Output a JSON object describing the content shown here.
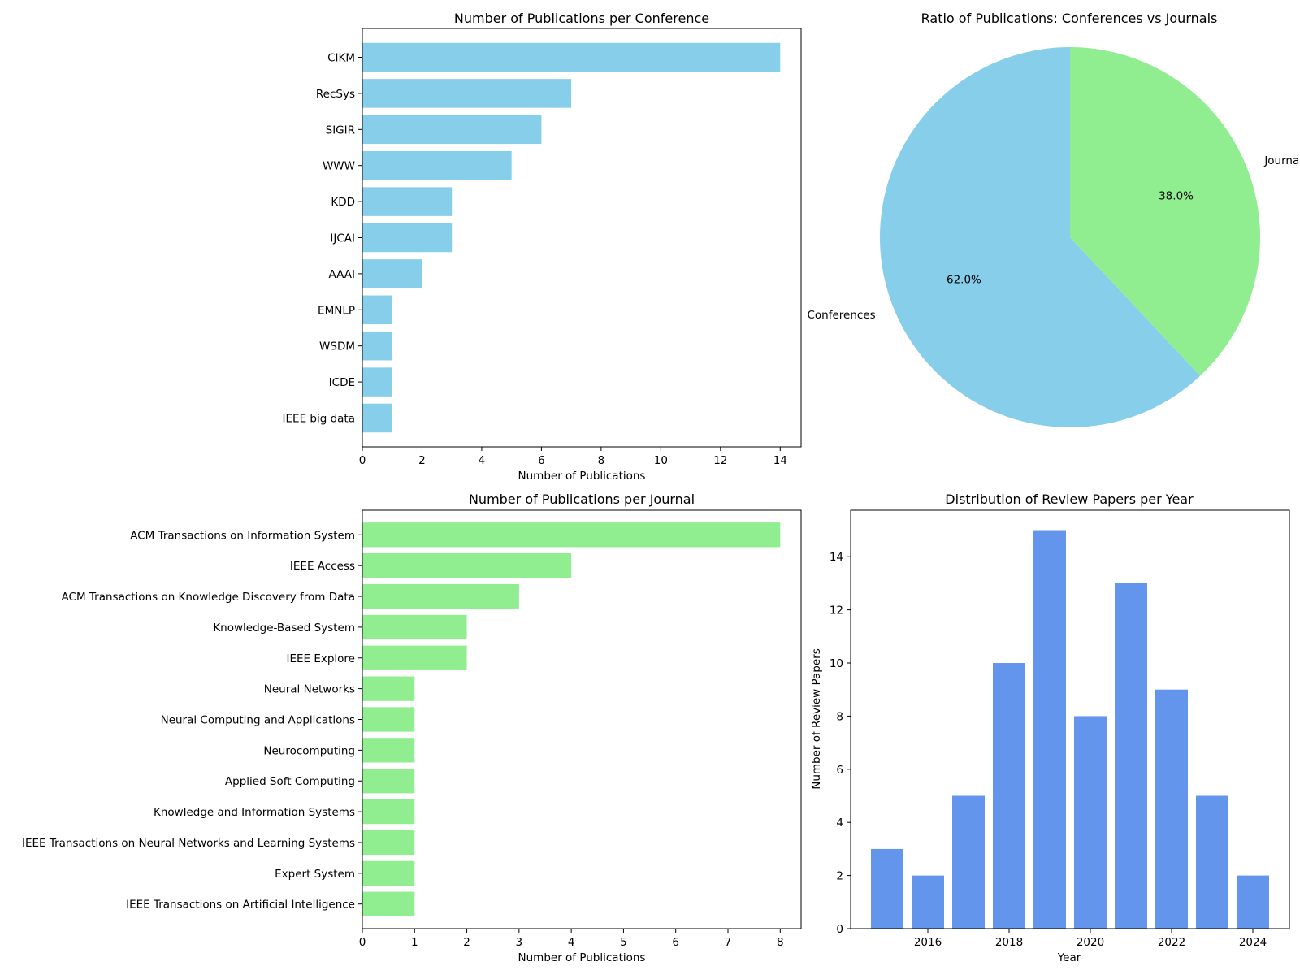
{
  "chart_data": [
    {
      "id": "conferences",
      "type": "bar",
      "orientation": "horizontal",
      "title": "Number of Publications per Conference",
      "xlabel": "Number of Publications",
      "ylabel": "",
      "xlim": [
        0,
        14.7
      ],
      "xticks": [
        "0",
        "2",
        "4",
        "6",
        "8",
        "10",
        "12",
        "14"
      ],
      "categories": [
        "CIKM",
        "RecSys",
        "SIGIR",
        "WWW",
        "KDD",
        "IJCAI",
        "AAAI",
        "EMNLP",
        "WSDM",
        "ICDE",
        "IEEE big data"
      ],
      "values": [
        14,
        7,
        6,
        5,
        3,
        3,
        2,
        1,
        1,
        1,
        1
      ],
      "color": "#87ceeb",
      "grid": false
    },
    {
      "id": "ratio",
      "type": "pie",
      "title": "Ratio of Publications: Conferences vs Journals",
      "labels": [
        "Conferences",
        "Journals"
      ],
      "values": [
        62.0,
        38.0
      ],
      "pct_labels": [
        "62.0%",
        "38.0%"
      ],
      "colors": [
        "#87ceeb",
        "#90ee90"
      ],
      "startangle": 90,
      "direction": "clockwise-from-top: journals first"
    },
    {
      "id": "journals",
      "type": "bar",
      "orientation": "horizontal",
      "title": "Number of Publications per Journal",
      "xlabel": "Number of Publications",
      "ylabel": "",
      "xlim": [
        0,
        8.4
      ],
      "xticks": [
        "0",
        "1",
        "2",
        "3",
        "4",
        "5",
        "6",
        "7",
        "8"
      ],
      "categories": [
        "ACM Transactions on Information System",
        "IEEE Access",
        "ACM Transactions on Knowledge Discovery from Data",
        "Knowledge-Based System",
        "IEEE Explore",
        "Neural Networks",
        "Neural Computing and Applications",
        "Neurocomputing",
        "Applied Soft Computing",
        "Knowledge and Information Systems",
        "IEEE Transactions on Neural Networks and Learning Systems",
        "Expert System",
        "IEEE Transactions on Artificial Intelligence"
      ],
      "values": [
        8,
        4,
        3,
        2,
        2,
        1,
        1,
        1,
        1,
        1,
        1,
        1,
        1
      ],
      "color": "#90ee90",
      "grid": false
    },
    {
      "id": "years",
      "type": "bar",
      "orientation": "vertical",
      "title": "Distribution of Review Papers per Year",
      "xlabel": "Year",
      "ylabel": "Number of Review Papers",
      "x": [
        2015,
        2016,
        2017,
        2018,
        2019,
        2020,
        2021,
        2022,
        2023,
        2024
      ],
      "values": [
        3,
        2,
        5,
        10,
        15,
        8,
        13,
        9,
        5,
        2
      ],
      "xlim": [
        2014.1,
        2024.9
      ],
      "ylim": [
        0,
        15.75
      ],
      "xticks": [
        "2016",
        "2018",
        "2020",
        "2022",
        "2024"
      ],
      "yticks": [
        "0",
        "2",
        "4",
        "6",
        "8",
        "10",
        "12",
        "14"
      ],
      "color": "#6495ed",
      "grid": false
    }
  ]
}
